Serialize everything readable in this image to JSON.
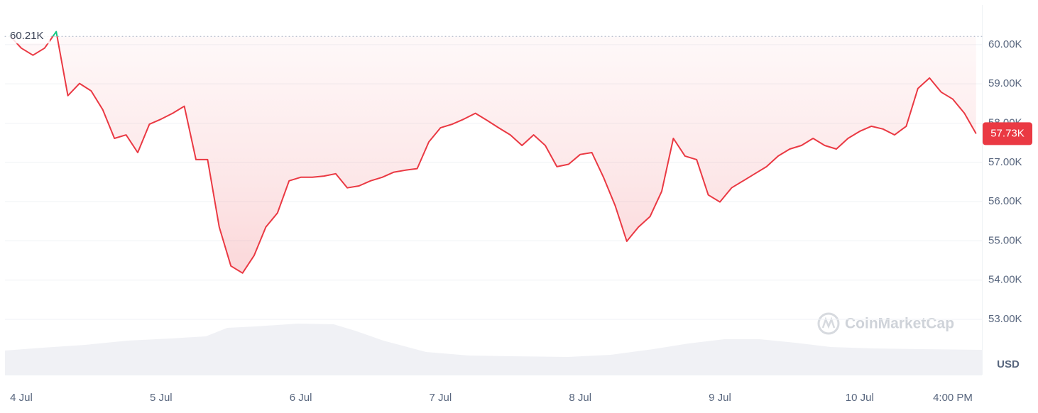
{
  "chart_data": {
    "type": "line",
    "categories": [
      null,
      "4 Jul",
      null,
      null,
      null,
      null,
      null,
      null,
      null,
      null,
      null,
      null,
      null,
      "5 Jul",
      null,
      null,
      null,
      null,
      null,
      null,
      null,
      null,
      null,
      null,
      null,
      "6 Jul",
      null,
      null,
      null,
      null,
      null,
      null,
      null,
      null,
      null,
      null,
      null,
      "7 Jul",
      null,
      null,
      null,
      null,
      null,
      null,
      null,
      null,
      null,
      null,
      null,
      "8 Jul",
      null,
      null,
      null,
      null,
      null,
      null,
      null,
      null,
      null,
      null,
      null,
      "9 Jul",
      null,
      null,
      null,
      null,
      null,
      null,
      null,
      null,
      null,
      null,
      null,
      "10 Jul",
      null,
      null,
      null,
      null,
      null,
      null,
      null,
      "4:00 PM",
      null,
      null
    ],
    "values": [
      60230,
      59910,
      59730,
      59910,
      60330,
      58700,
      59010,
      58820,
      58340,
      57610,
      57700,
      57250,
      57970,
      58100,
      58250,
      58430,
      57070,
      57070,
      55350,
      54360,
      54180,
      54630,
      55350,
      55710,
      56530,
      56620,
      56620,
      56650,
      56710,
      56350,
      56400,
      56530,
      56620,
      56750,
      56800,
      56840,
      57520,
      57880,
      57970,
      58100,
      58250,
      58070,
      57880,
      57700,
      57430,
      57700,
      57430,
      56890,
      56950,
      57200,
      57250,
      56620,
      55900,
      54990,
      55350,
      55620,
      56260,
      57610,
      57160,
      57070,
      56170,
      55990,
      56350,
      56530,
      56710,
      56890,
      57160,
      57340,
      57430,
      57610,
      57430,
      57340,
      57610,
      57790,
      57920,
      57850,
      57700,
      57920,
      58880,
      59150,
      58790,
      58610,
      58250,
      57730
    ],
    "last_value_label": "57.73K",
    "baseline": {
      "value": 60210,
      "label": "60.21K"
    },
    "up_color": "#16c784",
    "down_color": "#ea3943",
    "ylim": [
      51590,
      61010
    ],
    "yticks": [
      {
        "value": 53000,
        "label": "53.00K"
      },
      {
        "value": 54000,
        "label": "54.00K"
      },
      {
        "value": 55000,
        "label": "55.00K"
      },
      {
        "value": 56000,
        "label": "56.00K"
      },
      {
        "value": 57000,
        "label": "57.00K"
      },
      {
        "value": 58000,
        "label": "58.00K"
      },
      {
        "value": 59000,
        "label": "59.00K"
      },
      {
        "value": 60000,
        "label": "60.00K"
      }
    ],
    "grid": true,
    "y_label": "USD",
    "watermark": "CoinMarketCap"
  }
}
